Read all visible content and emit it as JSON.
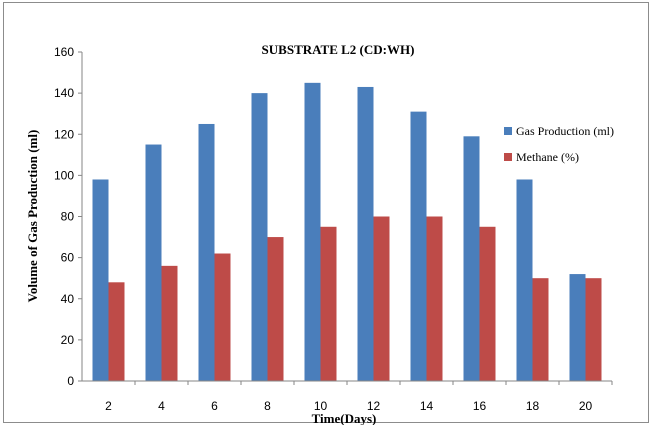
{
  "chart_data": {
    "type": "bar",
    "title": "SUBSTRATE L2 (CD:WH)",
    "xlabel": "Time(Days)",
    "ylabel": "Volume of Gas Production (ml)",
    "categories": [
      "2",
      "4",
      "6",
      "8",
      "10",
      "12",
      "14",
      "16",
      "18",
      "20"
    ],
    "series": [
      {
        "name": "Gas Production (ml)",
        "color": "#4a7ebb",
        "values": [
          98,
          115,
          125,
          140,
          145,
          143,
          131,
          119,
          98,
          52
        ]
      },
      {
        "name": "Methane (%)",
        "color": "#be4b48",
        "values": [
          48,
          56,
          62,
          70,
          75,
          80,
          80,
          75,
          50,
          50
        ]
      }
    ],
    "ylim": [
      0,
      160
    ],
    "yticks": [
      0,
      20,
      40,
      60,
      80,
      100,
      120,
      140,
      160
    ],
    "grid": false,
    "legend_position": "right"
  }
}
